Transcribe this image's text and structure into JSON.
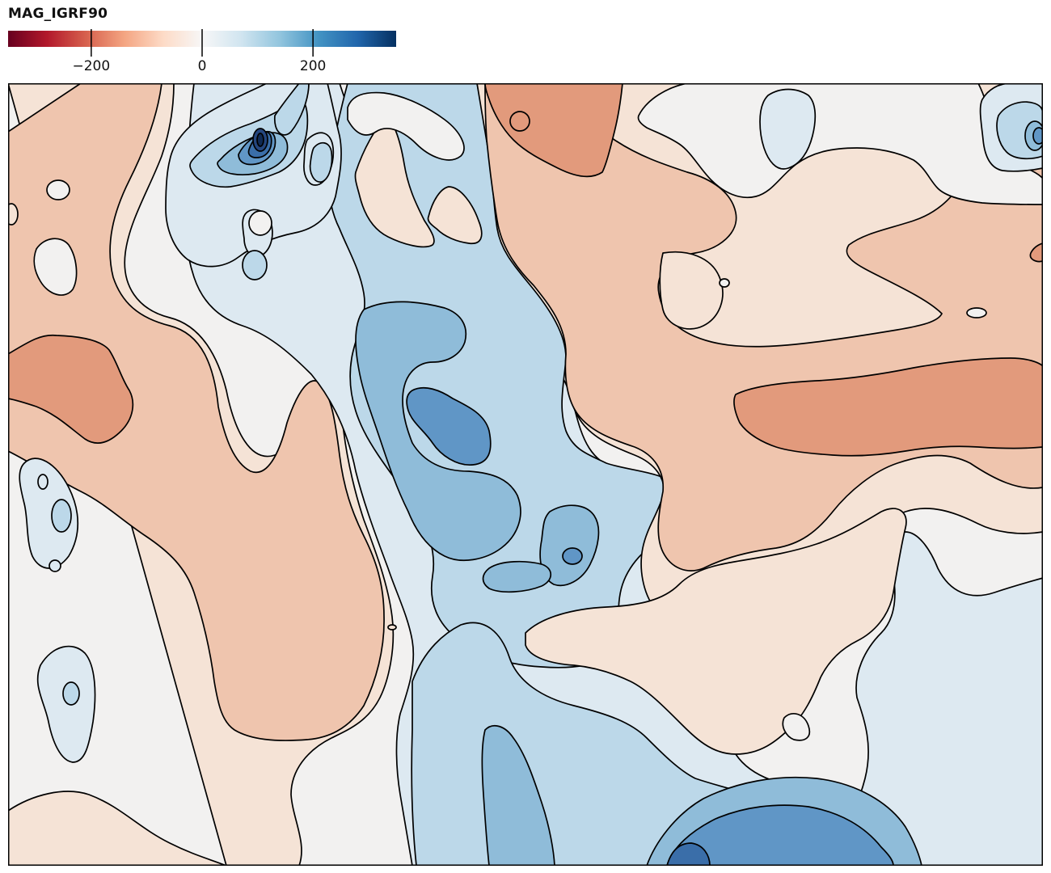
{
  "chart_data": {
    "type": "contour",
    "title": "MAG_IGRF90",
    "colorbar": {
      "label": "MAG_IGRF90",
      "range": [
        -350,
        350
      ],
      "ticks": [
        -200,
        0,
        200
      ],
      "tick_labels": [
        "−200",
        "0",
        "200"
      ],
      "colormap": "RdBu",
      "stops": [
        "#67001f",
        "#b2182b",
        "#d6604d",
        "#f4a582",
        "#fddbc7",
        "#f7f7f7",
        "#d1e5f0",
        "#92c5de",
        "#4393c3",
        "#2166ac",
        "#053061"
      ]
    },
    "contour_levels": [
      -300,
      -250,
      -200,
      -150,
      -100,
      -50,
      0,
      50,
      100,
      150,
      200,
      250,
      300
    ],
    "fill_colors": {
      "neg_150": "#e29a7c",
      "neg_100": "#efc5ae",
      "neg_50": "#f5e3d6",
      "zero_band": "#f2f1f0",
      "pos_50": "#dde9f1",
      "pos_100": "#bcd8e9",
      "pos_150": "#8fbcd9",
      "pos_200": "#6096c6",
      "pos_250": "#3a6ea9",
      "pos_300": "#24467f",
      "pos_350": "#0f2a55"
    },
    "grid": false,
    "legend": "top-left"
  }
}
